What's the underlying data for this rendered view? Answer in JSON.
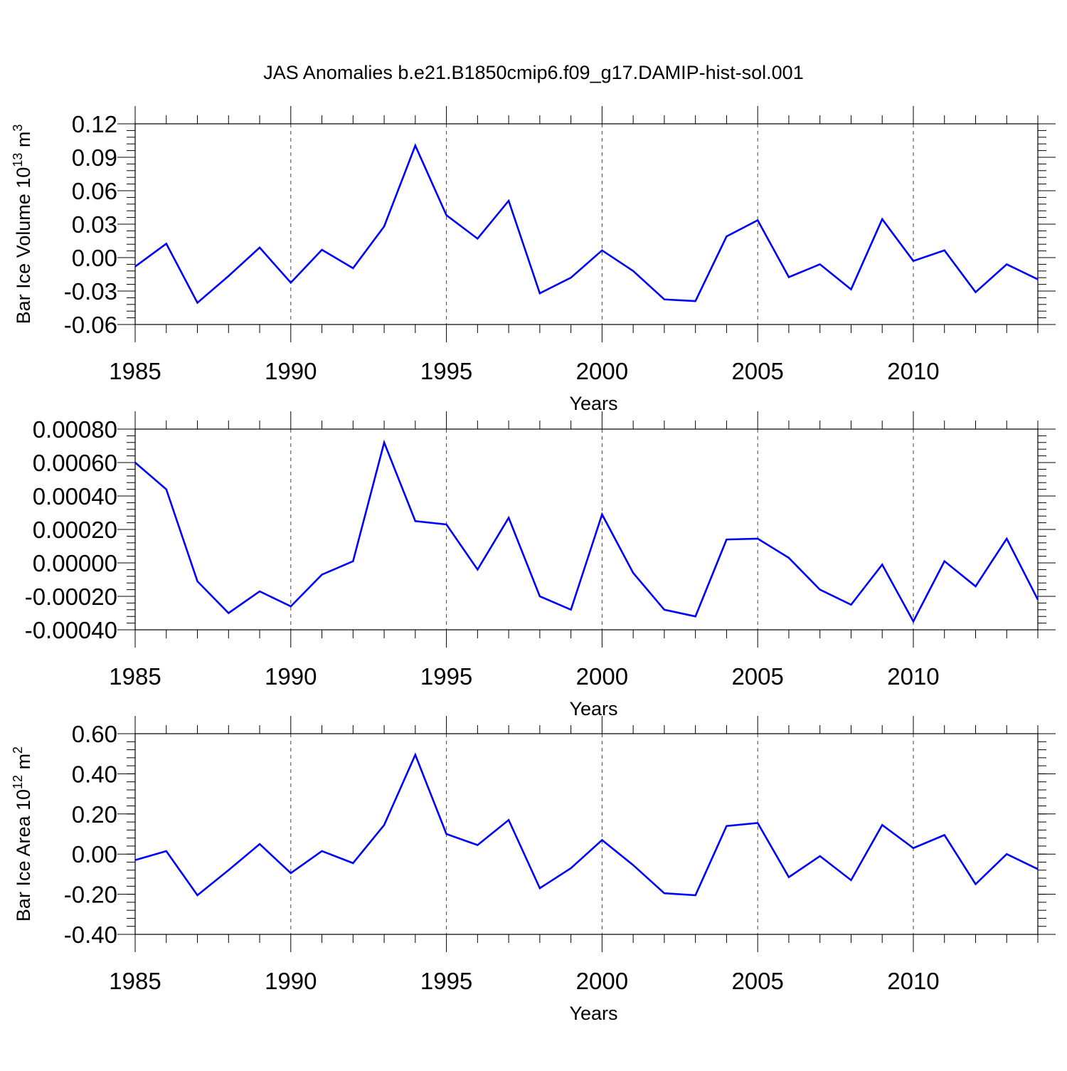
{
  "title": "JAS Anomalies b.e21.B1850cmip6.f09_g17.DAMIP-hist-sol.001",
  "line_color": "#0000ff",
  "grid_color": "#444444",
  "chart_data": [
    {
      "type": "line",
      "name": "volume",
      "title": "",
      "xlabel": "Years",
      "ylabel": "Bar Ice Volume 10",
      "ylabel_exp": "13",
      "ylabel_unit": " m",
      "ylabel_unit_exp": "3",
      "xlim": [
        1985,
        2014
      ],
      "ylim": [
        -0.06,
        0.12
      ],
      "x_ticks": [
        1985,
        1990,
        1995,
        2000,
        2005,
        2010
      ],
      "y_ticks": [
        -0.06,
        -0.03,
        0.0,
        0.03,
        0.06,
        0.09,
        0.12
      ],
      "y_tick_labels": [
        "-0.06",
        "-0.03",
        "0.00",
        "0.03",
        "0.06",
        "0.09",
        "0.12"
      ],
      "y_minor_step": 0.006,
      "grid": "vertical dashed at major x ticks",
      "x": [
        1985,
        1986,
        1987,
        1988,
        1989,
        1990,
        1991,
        1992,
        1993,
        1994,
        1995,
        1996,
        1997,
        1998,
        1999,
        2000,
        2001,
        2002,
        2003,
        2004,
        2005,
        2006,
        2007,
        2008,
        2009,
        2010,
        2011,
        2012,
        2013,
        2014
      ],
      "series": [
        {
          "name": "Bar Ice Volume",
          "values": [
            -0.008,
            0.0125,
            -0.0405,
            -0.0165,
            0.009,
            -0.0225,
            0.007,
            -0.0095,
            0.028,
            0.1005,
            0.038,
            0.017,
            0.051,
            -0.032,
            -0.018,
            0.0065,
            -0.012,
            -0.0375,
            -0.039,
            0.019,
            0.0335,
            -0.0175,
            -0.006,
            -0.0285,
            0.0345,
            -0.003,
            0.0065,
            -0.031,
            -0.006,
            -0.0195
          ]
        }
      ]
    },
    {
      "type": "line",
      "name": "thickness",
      "title": "",
      "xlabel": "Years",
      "ylabel": "",
      "xlim": [
        1985,
        2014
      ],
      "ylim": [
        -0.0004,
        0.0008
      ],
      "x_ticks": [
        1985,
        1990,
        1995,
        2000,
        2005,
        2010
      ],
      "y_ticks": [
        -0.0004,
        -0.0002,
        0.0,
        0.0002,
        0.0004,
        0.0006,
        0.0008
      ],
      "y_tick_labels": [
        "-0.00040",
        "-0.00020",
        "0.00000",
        "0.00020",
        "0.00040",
        "0.00060",
        "0.00080"
      ],
      "y_minor_step": 4e-05,
      "grid": "vertical dashed at major x ticks",
      "x": [
        1985,
        1986,
        1987,
        1988,
        1989,
        1990,
        1991,
        1992,
        1993,
        1994,
        1995,
        1996,
        1997,
        1998,
        1999,
        2000,
        2001,
        2002,
        2003,
        2004,
        2005,
        2006,
        2007,
        2008,
        2009,
        2010,
        2011,
        2012,
        2013,
        2014
      ],
      "series": [
        {
          "name": "Series",
          "values": [
            0.0006,
            0.00044,
            -0.00011,
            -0.0003,
            -0.00017,
            -0.00026,
            -7e-05,
            1e-05,
            0.00072,
            0.00025,
            0.00023,
            -4e-05,
            0.00027,
            -0.0002,
            -0.00028,
            0.00029,
            -6e-05,
            -0.00028,
            -0.00032,
            0.00014,
            0.000145,
            3e-05,
            -0.00016,
            -0.00025,
            -1e-05,
            -0.00035,
            1e-05,
            -0.00014,
            0.000145,
            -0.00022
          ]
        }
      ]
    },
    {
      "type": "line",
      "name": "area",
      "title": "",
      "xlabel": "Years",
      "ylabel": "Bar Ice Area 10",
      "ylabel_exp": "12",
      "ylabel_unit": " m",
      "ylabel_unit_exp": "2",
      "xlim": [
        1985,
        2014
      ],
      "ylim": [
        -0.4,
        0.6
      ],
      "x_ticks": [
        1985,
        1990,
        1995,
        2000,
        2005,
        2010
      ],
      "y_ticks": [
        -0.4,
        -0.2,
        0.0,
        0.2,
        0.4,
        0.6
      ],
      "y_tick_labels": [
        "-0.40",
        "-0.20",
        "0.00",
        "0.20",
        "0.40",
        "0.60"
      ],
      "y_minor_step": 0.04,
      "grid": "vertical dashed at major x ticks",
      "x": [
        1985,
        1986,
        1987,
        1988,
        1989,
        1990,
        1991,
        1992,
        1993,
        1994,
        1995,
        1996,
        1997,
        1998,
        1999,
        2000,
        2001,
        2002,
        2003,
        2004,
        2005,
        2006,
        2007,
        2008,
        2009,
        2010,
        2011,
        2012,
        2013,
        2014
      ],
      "series": [
        {
          "name": "Bar Ice Area",
          "values": [
            -0.03,
            0.015,
            -0.205,
            -0.08,
            0.05,
            -0.095,
            0.015,
            -0.045,
            0.145,
            0.495,
            0.1,
            0.045,
            0.17,
            -0.17,
            -0.07,
            0.07,
            -0.055,
            -0.195,
            -0.205,
            0.14,
            0.155,
            -0.115,
            -0.01,
            -0.13,
            0.145,
            0.03,
            0.095,
            -0.15,
            0.0,
            -0.075
          ]
        }
      ]
    }
  ]
}
